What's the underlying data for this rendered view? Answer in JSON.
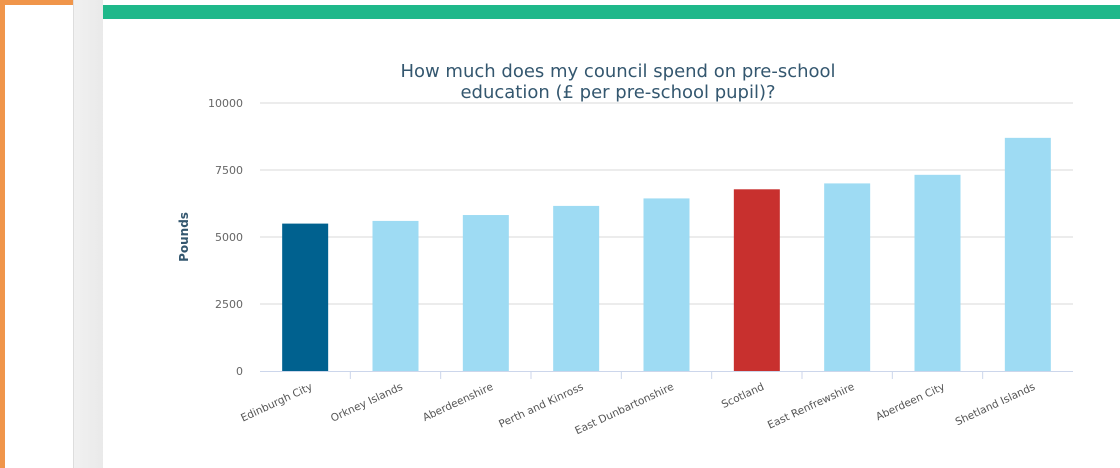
{
  "chart_data": {
    "type": "bar",
    "title_lines": [
      "How much does my council spend on pre-school",
      "education (£ per pre-school pupil)?"
    ],
    "xlabel": "",
    "ylabel": "Pounds",
    "ylim": [
      0,
      10000
    ],
    "yticks": [
      0,
      2500,
      5000,
      7500,
      10000
    ],
    "ytick_labels": [
      "0",
      "2500",
      "5000",
      "7500",
      "10000"
    ],
    "categories": [
      "Edinburgh City",
      "Orkney Islands",
      "Aberdeenshire",
      "Perth and Kinross",
      "East Dunbartonshire",
      "Scotland",
      "East Renfrewshire",
      "Aberdeen City",
      "Shetland Islands"
    ],
    "values": [
      5500,
      5600,
      5820,
      6160,
      6440,
      6780,
      7000,
      7320,
      8700
    ],
    "bar_colors": [
      "#00618f",
      "#9edbf3",
      "#9edbf3",
      "#9edbf3",
      "#9edbf3",
      "#c8302e",
      "#9edbf3",
      "#9edbf3",
      "#9edbf3"
    ],
    "grid": true,
    "legend": "none"
  },
  "colors": {
    "frame_border": "#f0954a",
    "header_bar": "#1fb88a",
    "highlight_bar": "#00618f",
    "comparison_bar": "#c8302e",
    "default_bar": "#9edbf3"
  }
}
